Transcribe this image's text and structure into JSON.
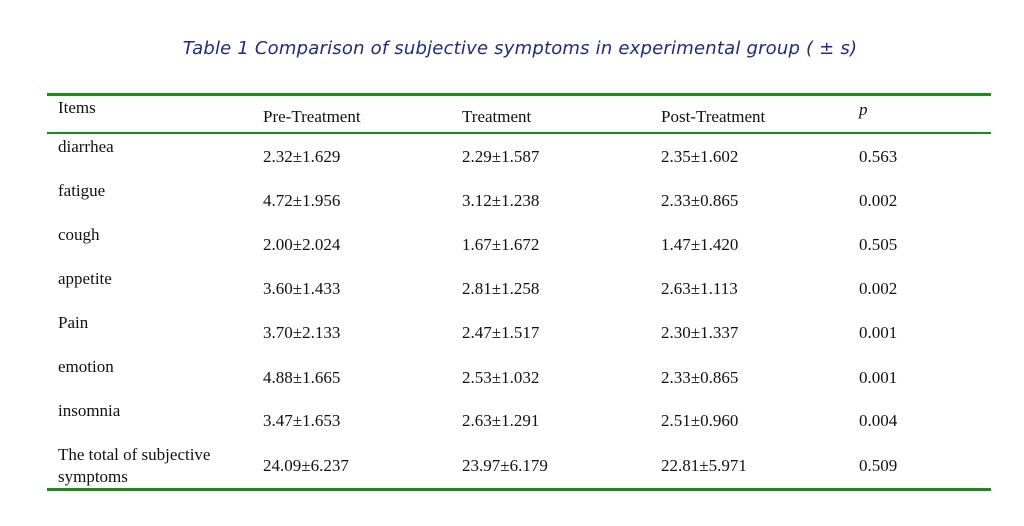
{
  "caption": "Table 1 Comparison of subjective symptoms in experimental group ( ± s)",
  "colors": {
    "rule": "#1e8a1e",
    "caption": "#1f2a80",
    "text": "#111111"
  },
  "headers": {
    "items": "Items",
    "pre": "Pre-Treatment",
    "treatment": "Treatment",
    "post": "Post-Treatment",
    "p": "p"
  },
  "rows": [
    {
      "item": "diarrhea",
      "pre": "2.32±1.629",
      "treatment": "2.29±1.587",
      "post": "2.35±1.602",
      "p": "0.563"
    },
    {
      "item": "fatigue",
      "pre": "4.72±1.956",
      "treatment": "3.12±1.238",
      "post": "2.33±0.865",
      "p": "0.002"
    },
    {
      "item": "cough",
      "pre": "2.00±2.024",
      "treatment": "1.67±1.672",
      "post": "1.47±1.420",
      "p": "0.505"
    },
    {
      "item": "appetite",
      "pre": "3.60±1.433",
      "treatment": "2.81±1.258",
      "post": "2.63±1.113",
      "p": "0.002"
    },
    {
      "item": "Pain",
      "pre": "3.70±2.133",
      "treatment": "2.47±1.517",
      "post": "2.30±1.337",
      "p": "0.001"
    },
    {
      "item": "emotion",
      "pre": "4.88±1.665",
      "treatment": "2.53±1.032",
      "post": "2.33±0.865",
      "p": "0.001"
    },
    {
      "item": "insomnia",
      "pre": "3.47±1.653",
      "treatment": "2.63±1.291",
      "post": "2.51±0.960",
      "p": "0.004"
    },
    {
      "item": "The total of subjective symptoms",
      "pre": "24.09±6.237",
      "treatment": "23.97±6.179",
      "post": "22.81±5.971",
      "p": "0.509"
    }
  ]
}
